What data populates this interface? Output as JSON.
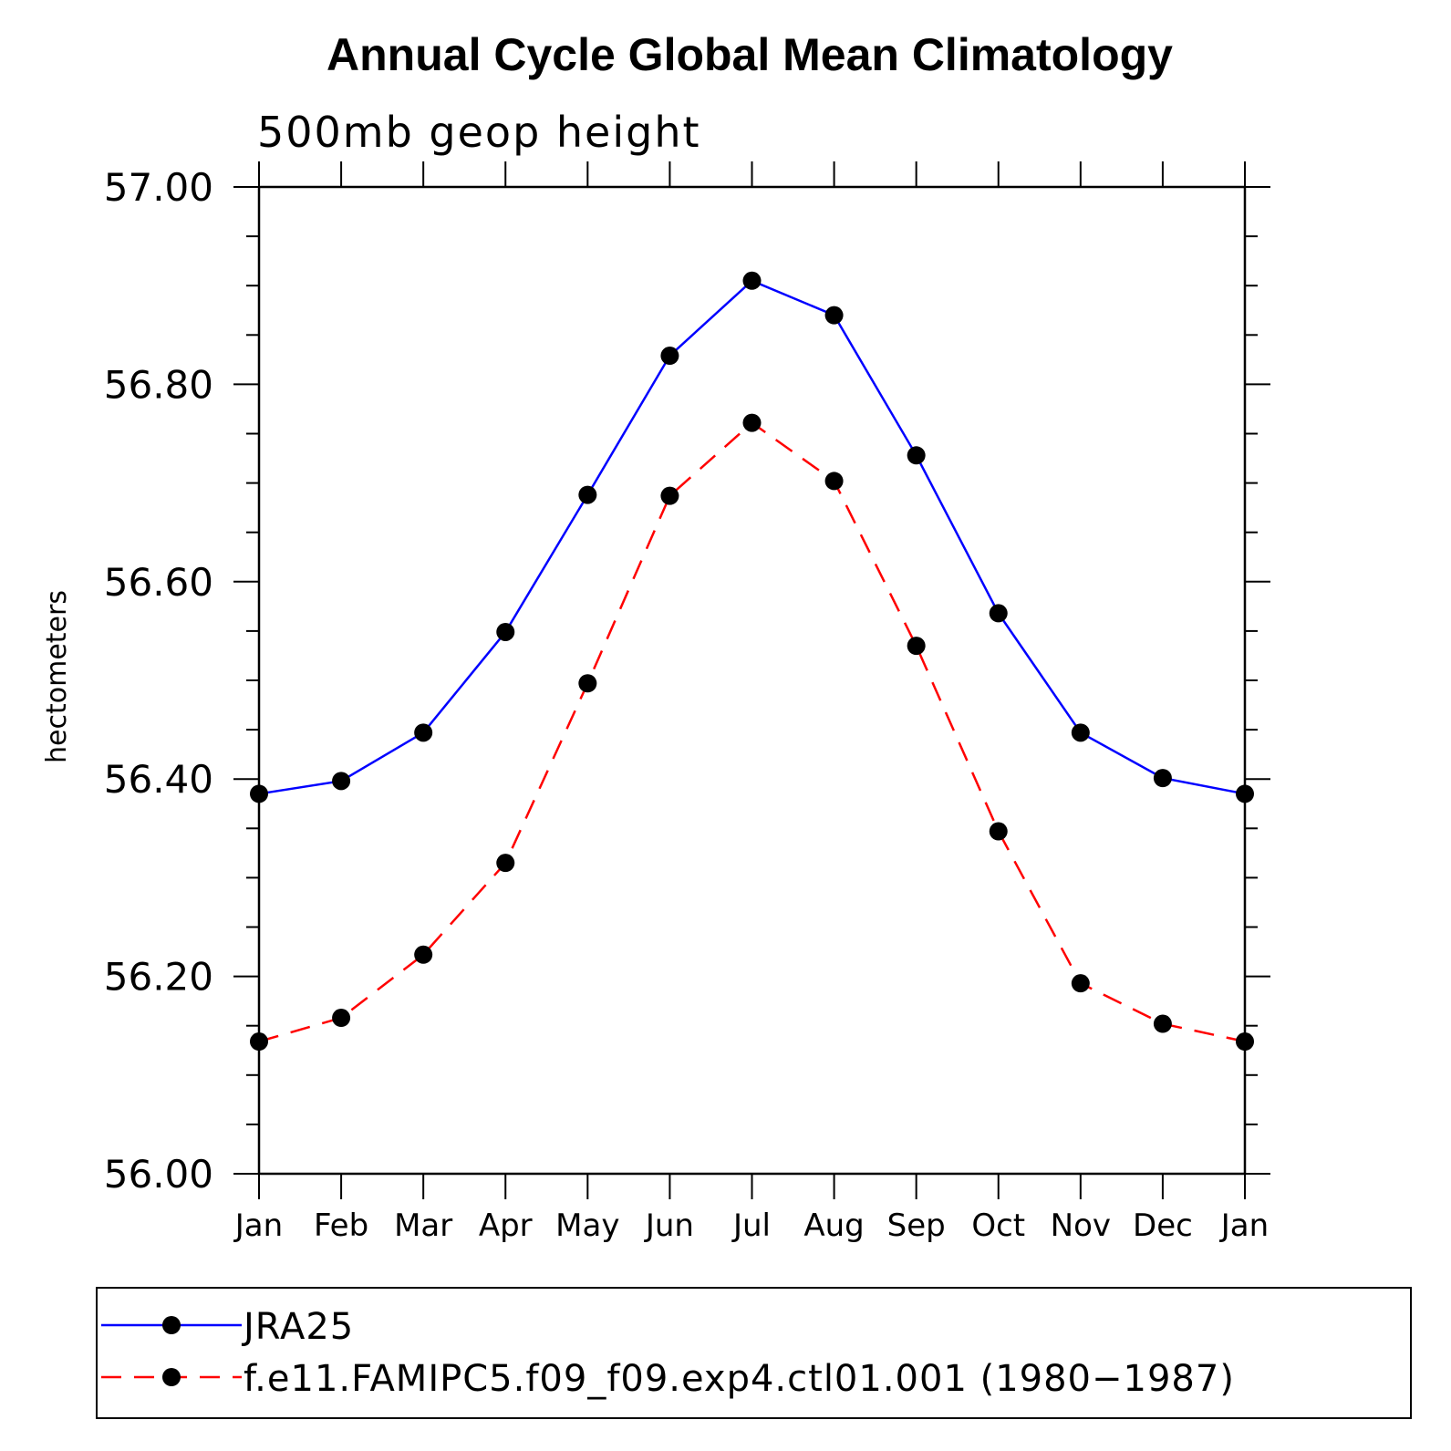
{
  "chart_data": {
    "type": "line",
    "title": "Annual Cycle Global Mean Climatology",
    "subtitle": "500mb geop height",
    "ylabel": "hectometers",
    "xlabel": "",
    "categories": [
      "Jan",
      "Feb",
      "Mar",
      "Apr",
      "May",
      "Jun",
      "Jul",
      "Aug",
      "Sep",
      "Oct",
      "Nov",
      "Dec",
      "Jan"
    ],
    "ylim": [
      56.0,
      57.0
    ],
    "yticks": [
      "56.00",
      "56.20",
      "56.40",
      "56.60",
      "56.80",
      "57.00"
    ],
    "grid": false,
    "legend_position": "bottom",
    "series": [
      {
        "name": "JRA25",
        "color": "#0000ff",
        "dash": "solid",
        "values": [
          56.385,
          56.398,
          56.447,
          56.549,
          56.688,
          56.829,
          56.905,
          56.87,
          56.728,
          56.568,
          56.447,
          56.401,
          56.385
        ]
      },
      {
        "name": "f.e11.FAMIPC5.f09_f09.exp4.ctl01.001 (1980−1987)",
        "color": "#ff0000",
        "dash": "dashed",
        "values": [
          56.134,
          56.158,
          56.222,
          56.315,
          56.497,
          56.687,
          56.761,
          56.702,
          56.535,
          56.347,
          56.193,
          56.152,
          56.134
        ]
      }
    ]
  }
}
